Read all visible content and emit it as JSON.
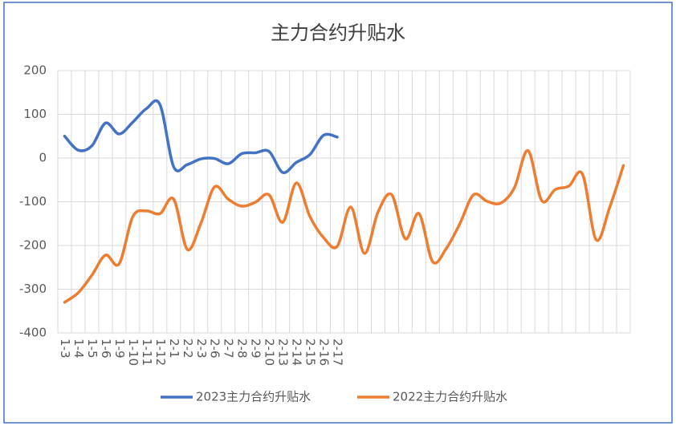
{
  "chart_data": {
    "type": "line",
    "title": "主力合约升贴水",
    "categories": [
      "1-3",
      "1-4",
      "1-5",
      "1-6",
      "1-9",
      "1-10",
      "1-11",
      "1-12",
      "2-1",
      "2-2",
      "2-3",
      "2-6",
      "2-7",
      "2-8",
      "2-9",
      "2-10",
      "2-13",
      "2-14",
      "2-15",
      "2-16",
      "2-17",
      null,
      null,
      null,
      null,
      null,
      null,
      null,
      null,
      null,
      null,
      null,
      null,
      null,
      null,
      null,
      null,
      null,
      null,
      null,
      null,
      null
    ],
    "series": [
      {
        "name": "2023主力合约升贴水",
        "color": "#4472c4",
        "values": [
          50,
          18,
          28,
          80,
          55,
          82,
          113,
          122,
          -20,
          -15,
          -2,
          -1,
          -13,
          10,
          12,
          15,
          -33,
          -10,
          8,
          52,
          48,
          null,
          null,
          null,
          null,
          null,
          null,
          null,
          null,
          null,
          null,
          null,
          null,
          null,
          null,
          null,
          null,
          null,
          null,
          null,
          null,
          null
        ]
      },
      {
        "name": "2022主力合约升贴水",
        "color": "#ed7d31",
        "values": [
          -330,
          -308,
          -268,
          -222,
          -242,
          -134,
          -121,
          -127,
          -94,
          -209,
          -149,
          -66,
          -94,
          -110,
          -101,
          -84,
          -147,
          -57,
          -134,
          -182,
          -202,
          -112,
          -218,
          -123,
          -84,
          -185,
          -127,
          -237,
          -207,
          -150,
          -84,
          -99,
          -103,
          -68,
          17,
          -97,
          -72,
          -64,
          -37,
          -187,
          -112,
          -17
        ]
      }
    ],
    "ylim": [
      -400,
      200
    ],
    "yticks": [
      -400,
      -300,
      -200,
      -100,
      0,
      100,
      200
    ],
    "grid": true,
    "legend": "bottom"
  }
}
